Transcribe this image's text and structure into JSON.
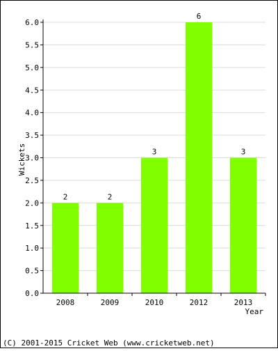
{
  "chart_data": {
    "type": "bar",
    "categories": [
      "2008",
      "2009",
      "2010",
      "2012",
      "2013"
    ],
    "values": [
      2,
      2,
      3,
      6,
      3
    ],
    "data_labels": [
      "2",
      "2",
      "3",
      "6",
      "3"
    ],
    "title": "",
    "xlabel": "Year",
    "ylabel": "Wickets",
    "ylim": [
      0,
      6.0
    ],
    "yticks": [
      "0.0",
      "0.5",
      "1.0",
      "1.5",
      "2.0",
      "2.5",
      "3.0",
      "3.5",
      "4.0",
      "4.5",
      "5.0",
      "5.5",
      "6.0"
    ],
    "grid": true,
    "legend": "none",
    "bar_color": "#80ff00",
    "grid_color": "#dcdcdc"
  },
  "footer": {
    "copyright": "(C) 2001-2015 Cricket Web (www.cricketweb.net)"
  }
}
